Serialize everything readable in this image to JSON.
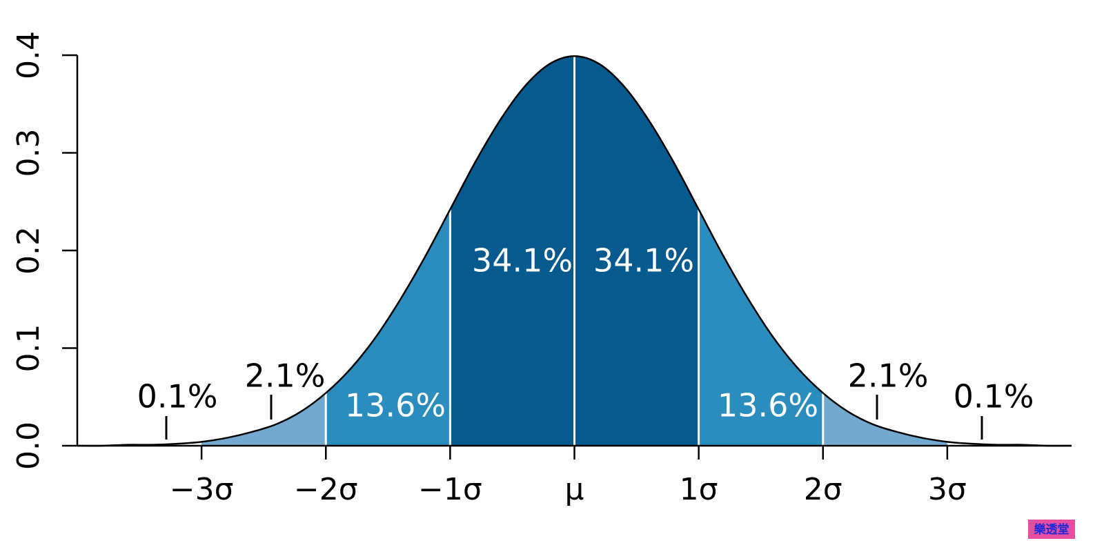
{
  "chart_data": {
    "type": "area",
    "x": [
      -4,
      -3.8,
      -3.6,
      -3.4,
      -3.2,
      -3,
      -2.8,
      -2.6,
      -2.4,
      -2.2,
      -2,
      -1.8,
      -1.6,
      -1.4,
      -1.2,
      -1,
      -0.8,
      -0.6,
      -0.4,
      -0.2,
      0,
      0.2,
      0.4,
      0.6,
      0.8,
      1,
      1.2,
      1.4,
      1.6,
      1.8,
      2,
      2.2,
      2.4,
      2.6,
      2.8,
      3,
      3.2,
      3.4,
      3.6,
      3.8,
      4
    ],
    "values": [
      0.0,
      0.0,
      0.001,
      0.001,
      0.002,
      0.004,
      0.008,
      0.014,
      0.022,
      0.035,
      0.054,
      0.079,
      0.111,
      0.15,
      0.194,
      0.242,
      0.29,
      0.333,
      0.368,
      0.391,
      0.399,
      0.391,
      0.368,
      0.333,
      0.29,
      0.242,
      0.194,
      0.15,
      0.111,
      0.079,
      0.054,
      0.035,
      0.022,
      0.014,
      0.008,
      0.004,
      0.002,
      0.001,
      0.001,
      0.0,
      0.0
    ],
    "line_color": "#000000",
    "regions": [
      {
        "range": [
          -4,
          -3
        ],
        "value": 0.1,
        "value_label": "0.1%",
        "color": "#ffffff"
      },
      {
        "range": [
          -3,
          -2
        ],
        "value": 2.1,
        "value_label": "2.1%",
        "color": "#74a9cf"
      },
      {
        "range": [
          -2,
          -1
        ],
        "value": 13.6,
        "value_label": "13.6%",
        "color": "#2b8cbe"
      },
      {
        "range": [
          -1,
          0
        ],
        "value": 34.1,
        "value_label": "34.1%",
        "color": "#065a8d"
      },
      {
        "range": [
          0,
          1
        ],
        "value": 34.1,
        "value_label": "34.1%",
        "color": "#065a8d"
      },
      {
        "range": [
          1,
          2
        ],
        "value": 13.6,
        "value_label": "13.6%",
        "color": "#2b8cbe"
      },
      {
        "range": [
          2,
          3
        ],
        "value": 2.1,
        "value_label": "2.1%",
        "color": "#74a9cf"
      },
      {
        "range": [
          3,
          4
        ],
        "value": 0.1,
        "value_label": "0.1%",
        "color": "#ffffff"
      }
    ],
    "xlim": [
      -4,
      4
    ],
    "xticks": [
      {
        "value": -3,
        "label": "−3σ"
      },
      {
        "value": -2,
        "label": "−2σ"
      },
      {
        "value": -1,
        "label": "−1σ"
      },
      {
        "value": 0,
        "label": "μ"
      },
      {
        "value": 1,
        "label": "1σ"
      },
      {
        "value": 2,
        "label": "2σ"
      },
      {
        "value": 3,
        "label": "3σ"
      }
    ],
    "ylim": [
      0,
      0.4
    ],
    "yticks": [
      {
        "value": 0,
        "label": "0.0"
      },
      0.1,
      0.2,
      0.3,
      0.4
    ],
    "watermark": "樂透堂"
  }
}
